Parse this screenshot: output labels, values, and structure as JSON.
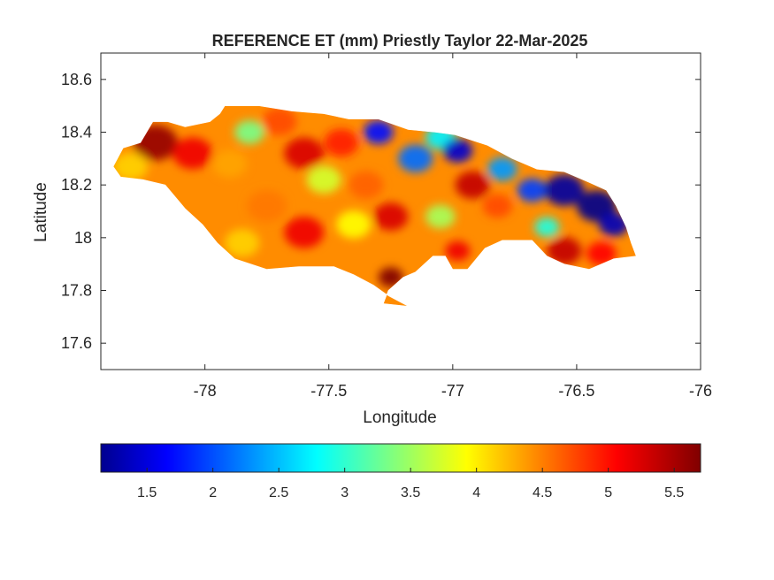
{
  "figure": {
    "title": "REFERENCE ET (mm) Priestly Taylor 22-Mar-2025",
    "xlabel": "Longitude",
    "ylabel": "Latitude"
  },
  "map_axes": {
    "xlim": [
      -78.42,
      -76.0
    ],
    "ylim": [
      17.5,
      18.7
    ],
    "xticks": [
      -78,
      -77.5,
      -77,
      -76.5,
      -76
    ],
    "xtick_labels": [
      "-78",
      "-77.5",
      "-77",
      "-76.5",
      "-76"
    ],
    "yticks": [
      17.6,
      17.8,
      18,
      18.2,
      18.4,
      18.6
    ],
    "ytick_labels": [
      "17.6",
      "17.8",
      "18",
      "18.2",
      "18.4",
      "18.6"
    ],
    "grid": false
  },
  "colorbar": {
    "colormap": "jet",
    "range": [
      1.15,
      5.7
    ],
    "ticks": [
      1.5,
      2,
      2.5,
      3,
      3.5,
      4,
      4.5,
      5,
      5.5
    ],
    "tick_labels": [
      "1.5",
      "2",
      "2.5",
      "3",
      "3.5",
      "4",
      "4.5",
      "5",
      "5.5"
    ],
    "placement": "south"
  },
  "island": {
    "name_shown": false,
    "outline": [
      [
        -78.37,
        18.27
      ],
      [
        -78.33,
        18.34
      ],
      [
        -78.26,
        18.36
      ],
      [
        -78.21,
        18.44
      ],
      [
        -78.15,
        18.44
      ],
      [
        -78.08,
        18.42
      ],
      [
        -77.98,
        18.44
      ],
      [
        -77.94,
        18.47
      ],
      [
        -77.92,
        18.5
      ],
      [
        -77.78,
        18.5
      ],
      [
        -77.65,
        18.48
      ],
      [
        -77.52,
        18.47
      ],
      [
        -77.42,
        18.45
      ],
      [
        -77.3,
        18.45
      ],
      [
        -77.18,
        18.41
      ],
      [
        -77.07,
        18.4
      ],
      [
        -76.99,
        18.39
      ],
      [
        -76.86,
        18.35
      ],
      [
        -76.76,
        18.3
      ],
      [
        -76.66,
        18.26
      ],
      [
        -76.55,
        18.25
      ],
      [
        -76.45,
        18.21
      ],
      [
        -76.38,
        18.18
      ],
      [
        -76.34,
        18.12
      ],
      [
        -76.3,
        18.04
      ],
      [
        -76.28,
        17.98
      ],
      [
        -76.26,
        17.93
      ],
      [
        -76.35,
        17.92
      ],
      [
        -76.45,
        17.88
      ],
      [
        -76.55,
        17.9
      ],
      [
        -76.62,
        17.93
      ],
      [
        -76.68,
        17.99
      ],
      [
        -76.8,
        17.99
      ],
      [
        -76.87,
        17.96
      ],
      [
        -76.94,
        17.88
      ],
      [
        -77.0,
        17.88
      ],
      [
        -77.03,
        17.93
      ],
      [
        -77.08,
        17.93
      ],
      [
        -77.15,
        17.87
      ],
      [
        -77.2,
        17.85
      ],
      [
        -77.26,
        17.8
      ],
      [
        -77.28,
        17.75
      ],
      [
        -77.18,
        17.74
      ],
      [
        -77.26,
        17.78
      ],
      [
        -77.32,
        17.82
      ],
      [
        -77.4,
        17.86
      ],
      [
        -77.48,
        17.89
      ],
      [
        -77.62,
        17.89
      ],
      [
        -77.75,
        17.88
      ],
      [
        -77.88,
        17.92
      ],
      [
        -77.95,
        17.98
      ],
      [
        -78.01,
        18.05
      ],
      [
        -78.08,
        18.11
      ],
      [
        -78.16,
        18.2
      ],
      [
        -78.25,
        18.22
      ],
      [
        -78.34,
        18.23
      ]
    ]
  },
  "et_field": {
    "description": "Reference ET values across the island (mm); west/central mostly 4-5.7, northeast lowest 1.2-2.5",
    "blobs": [
      {
        "lon": -78.2,
        "lat": 18.36,
        "value": 5.6,
        "r": 0.09
      },
      {
        "lon": -78.3,
        "lat": 18.27,
        "value": 4.2,
        "r": 0.07
      },
      {
        "lon": -78.05,
        "lat": 18.32,
        "value": 5.2,
        "r": 0.08
      },
      {
        "lon": -77.9,
        "lat": 18.28,
        "value": 4.4,
        "r": 0.07
      },
      {
        "lon": -77.82,
        "lat": 18.4,
        "value": 3.4,
        "r": 0.06
      },
      {
        "lon": -77.7,
        "lat": 18.44,
        "value": 4.8,
        "r": 0.07
      },
      {
        "lon": -77.6,
        "lat": 18.32,
        "value": 5.3,
        "r": 0.08
      },
      {
        "lon": -77.52,
        "lat": 18.22,
        "value": 3.8,
        "r": 0.07
      },
      {
        "lon": -77.45,
        "lat": 18.36,
        "value": 5.0,
        "r": 0.07
      },
      {
        "lon": -77.75,
        "lat": 18.12,
        "value": 4.6,
        "r": 0.08
      },
      {
        "lon": -77.6,
        "lat": 18.02,
        "value": 5.2,
        "r": 0.08
      },
      {
        "lon": -77.85,
        "lat": 17.98,
        "value": 4.2,
        "r": 0.07
      },
      {
        "lon": -77.4,
        "lat": 18.05,
        "value": 4.0,
        "r": 0.07
      },
      {
        "lon": -77.35,
        "lat": 18.2,
        "value": 4.7,
        "r": 0.07
      },
      {
        "lon": -77.25,
        "lat": 18.08,
        "value": 5.3,
        "r": 0.07
      },
      {
        "lon": -77.25,
        "lat": 17.85,
        "value": 5.7,
        "r": 0.05
      },
      {
        "lon": -77.3,
        "lat": 18.4,
        "value": 1.8,
        "r": 0.06
      },
      {
        "lon": -77.15,
        "lat": 18.3,
        "value": 2.2,
        "r": 0.07
      },
      {
        "lon": -77.05,
        "lat": 18.38,
        "value": 2.8,
        "r": 0.06
      },
      {
        "lon": -76.98,
        "lat": 18.33,
        "value": 1.5,
        "r": 0.06
      },
      {
        "lon": -76.92,
        "lat": 18.2,
        "value": 5.4,
        "r": 0.07
      },
      {
        "lon": -77.05,
        "lat": 18.08,
        "value": 3.6,
        "r": 0.06
      },
      {
        "lon": -76.98,
        "lat": 17.95,
        "value": 5.2,
        "r": 0.05
      },
      {
        "lon": -76.82,
        "lat": 18.12,
        "value": 4.8,
        "r": 0.06
      },
      {
        "lon": -76.8,
        "lat": 18.26,
        "value": 2.4,
        "r": 0.06
      },
      {
        "lon": -76.68,
        "lat": 18.18,
        "value": 2.0,
        "r": 0.06
      },
      {
        "lon": -76.55,
        "lat": 18.18,
        "value": 1.3,
        "r": 0.08
      },
      {
        "lon": -76.42,
        "lat": 18.12,
        "value": 1.2,
        "r": 0.08
      },
      {
        "lon": -76.35,
        "lat": 18.05,
        "value": 1.4,
        "r": 0.06
      },
      {
        "lon": -76.62,
        "lat": 18.04,
        "value": 3.0,
        "r": 0.05
      },
      {
        "lon": -76.55,
        "lat": 17.95,
        "value": 5.4,
        "r": 0.07
      },
      {
        "lon": -76.4,
        "lat": 17.94,
        "value": 5.1,
        "r": 0.06
      }
    ]
  }
}
